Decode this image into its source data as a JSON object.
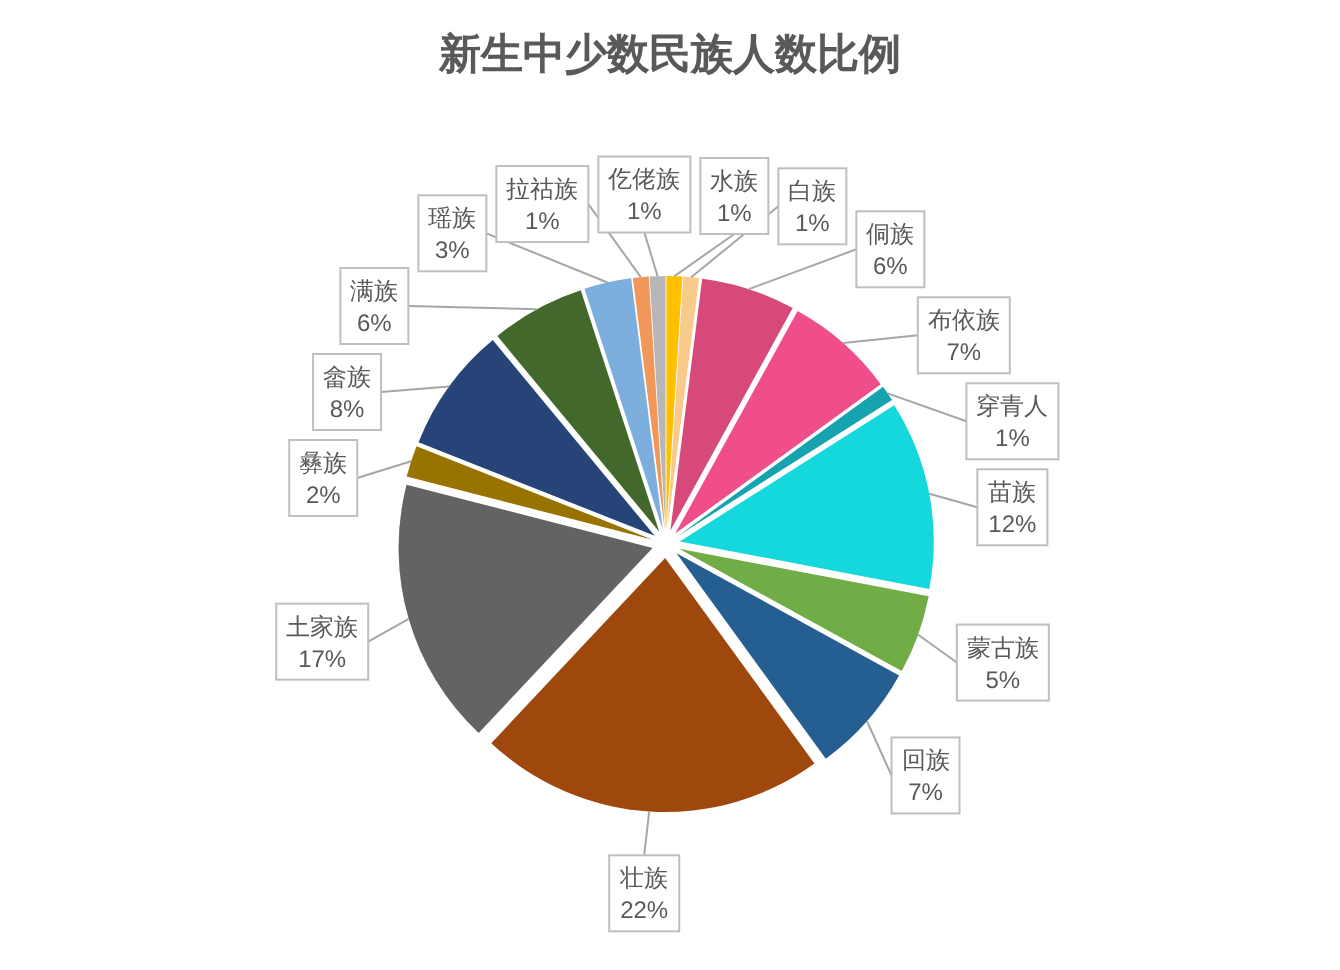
{
  "chart_data": {
    "type": "pie",
    "title": "新生中少数民族人数比例",
    "categories": [
      "水族",
      "白族",
      "侗族",
      "布依族",
      "穿青人",
      "苗族",
      "蒙古族",
      "回族",
      "壮族",
      "土家族",
      "彝族",
      "畲族",
      "满族",
      "瑶族",
      "拉祜族",
      "仡佬族"
    ],
    "values": [
      1,
      1,
      6,
      7,
      1,
      12,
      5,
      7,
      22,
      17,
      2,
      8,
      6,
      3,
      1,
      1
    ],
    "value_labels": [
      "1%",
      "1%",
      "6%",
      "7%",
      "1%",
      "12%",
      "5%",
      "7%",
      "22%",
      "17%",
      "2%",
      "8%",
      "6%",
      "3%",
      "1%",
      "1%"
    ],
    "colors": [
      "#ffc000",
      "#f8cb8a",
      "#d6497a",
      "#f04e8a",
      "#16a3b0",
      "#14d8dc",
      "#70ad47",
      "#255e91",
      "#9e480e",
      "#636363",
      "#997300",
      "#264478",
      "#43682b",
      "#7cafdd",
      "#f1975a",
      "#b7b7b7"
    ]
  }
}
